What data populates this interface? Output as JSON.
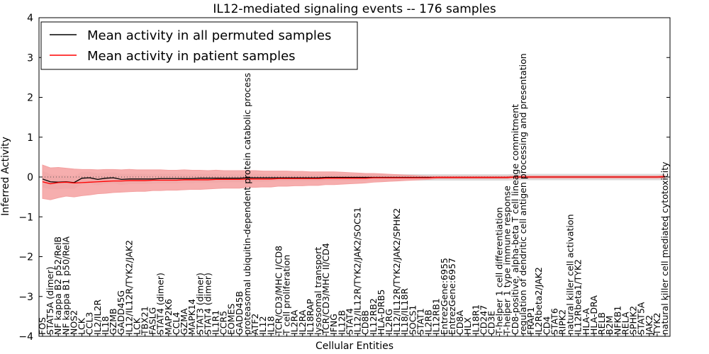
{
  "chart_data": {
    "type": "line",
    "title": "IL12-mediated signaling events -- 176 samples",
    "xlabel": "Cellular Entities",
    "ylabel": "Inferred Activity",
    "ylim": [
      -4,
      4
    ],
    "yticks": [
      -4,
      -3,
      -2,
      -1,
      0,
      1,
      2,
      3,
      4
    ],
    "ytick_labels": [
      "−4",
      "−3",
      "−2",
      "−1",
      "0",
      "1",
      "2",
      "3",
      "4"
    ],
    "legend": {
      "placement": "top-left",
      "entries": [
        {
          "label": "Mean activity in all permuted samples",
          "color": "#000000"
        },
        {
          "label": "Mean activity in patient samples",
          "color": "#ff0000"
        }
      ]
    },
    "colors": {
      "patient": "#ff0000",
      "patient_band": "#f4a0a0",
      "permuted": "#000000",
      "permuted_band": "#d9d9d9",
      "zero_line": "#555555"
    },
    "categories": [
      "FOS",
      "STAT5A (dimer)",
      "NF kappa B2 p52/RelB",
      "NF kappa B1 p50/RelA",
      "NOS2",
      "LCK",
      "CCL3",
      "IL2/IL2R",
      "IL18",
      "GZMB",
      "GADD45G",
      "IL12/IL12R/TYK2/JAK2",
      "LCK",
      "TBX21",
      "FASLG",
      "STAT4 (dimer)",
      "MAP2K6",
      "CCL4",
      "GZMA",
      "MAPK14",
      "STAT3 (dimer)",
      "STAT4 (dimer)",
      "IL1R1",
      "CCR5",
      "EOMES",
      "GADD45B",
      "proteasomal ubiquitin-dependent protein catabolic process",
      "ATF2",
      "IL12",
      "IL18",
      "TCR/CD3/MHC I/CD8",
      "T cell proliferation",
      "IL2RA",
      "IL2RA",
      "IL18RAP",
      "lysosomal transport",
      "TCR/CD3/MHC II/CD4",
      "IFNG",
      "IL12B",
      "STAT4",
      "IL12/IL12R/TYK2/JAK2/SOCS1",
      "CD8B",
      "IL12RB2",
      "HLA-DRB5",
      "IL2RG",
      "IL12/IL12R/TYK2/JAK2/SPHK2",
      "IL18/IL18R",
      "SOCS1",
      "STAT1",
      "IL2RB",
      "IL12RB1",
      "EntrezGene:6955",
      "EntrezGene:6957",
      "CD8A",
      "HLX",
      "IL18R1",
      "CD247",
      "CD3E",
      "T-helper 1 cell differentiation",
      "T-helper 1 type immune response",
      "CD8-positive, alpha-beta T cell lineage commitment",
      "regulation of dendritic cell antigen processing and presentation",
      "FRAP1",
      "IL2Rbeta2/JAK2",
      "CD4",
      "STAT6",
      "RIPK2",
      "natural killer cell activation",
      "IL12Rbeta1/TYK2",
      "HLA-A",
      "HLA-DRA",
      "RELB",
      "B2M",
      "NFKB1",
      "RELA",
      "SPHK2",
      "STAT5A",
      "JAK2",
      "TYK2",
      "natural killer cell mediated cytotoxicity"
    ],
    "series": [
      {
        "name": "Mean activity in all permuted samples",
        "values": [
          -0.05,
          -0.12,
          -0.13,
          -0.12,
          -0.14,
          -0.03,
          -0.02,
          -0.06,
          -0.03,
          -0.02,
          -0.06,
          -0.05,
          -0.05,
          -0.05,
          -0.05,
          -0.04,
          -0.04,
          -0.04,
          -0.04,
          -0.04,
          -0.03,
          -0.03,
          -0.03,
          -0.03,
          -0.03,
          -0.03,
          -0.02,
          -0.02,
          -0.02,
          -0.02,
          -0.02,
          -0.02,
          -0.02,
          -0.02,
          -0.02,
          -0.02,
          -0.01,
          -0.01,
          -0.01,
          -0.01,
          -0.01,
          -0.01,
          -0.01,
          -0.01,
          -0.01,
          -0.01,
          -0.01,
          -0.01,
          -0.01,
          -0.01,
          -0.01,
          -0.01,
          -0.01,
          -0.01,
          -0.01,
          -0.01,
          -0.01,
          -0.01,
          -0.01,
          -0.01,
          0,
          0,
          0,
          0,
          0,
          0,
          0,
          0,
          0,
          0,
          0,
          0,
          0,
          0,
          0,
          0,
          0,
          0,
          0,
          0
        ]
      },
      {
        "name": "Mean activity in patient samples",
        "values": [
          -0.12,
          -0.17,
          -0.14,
          -0.13,
          -0.15,
          -0.14,
          -0.13,
          -0.12,
          -0.11,
          -0.1,
          -0.1,
          -0.09,
          -0.09,
          -0.09,
          -0.08,
          -0.08,
          -0.08,
          -0.08,
          -0.07,
          -0.07,
          -0.07,
          -0.07,
          -0.06,
          -0.06,
          -0.06,
          -0.06,
          -0.05,
          -0.05,
          -0.05,
          -0.05,
          -0.04,
          -0.04,
          -0.04,
          -0.04,
          -0.04,
          -0.04,
          -0.03,
          -0.03,
          -0.03,
          -0.03,
          -0.03,
          -0.03,
          -0.02,
          -0.02,
          -0.02,
          -0.02,
          -0.02,
          -0.02,
          -0.02,
          -0.02,
          -0.01,
          -0.01,
          -0.01,
          -0.01,
          -0.01,
          -0.01,
          -0.01,
          -0.01,
          -0.01,
          -0.01,
          0,
          0,
          0,
          0,
          0,
          0,
          0,
          0,
          0,
          0,
          0,
          0,
          0,
          0,
          0,
          0,
          0,
          0,
          0,
          0.01
        ]
      }
    ],
    "patient_band_halfwidth": [
      0.42,
      0.4,
      0.38,
      0.35,
      0.35,
      0.33,
      0.32,
      0.3,
      0.3,
      0.29,
      0.28,
      0.28,
      0.27,
      0.27,
      0.26,
      0.26,
      0.25,
      0.25,
      0.25,
      0.24,
      0.24,
      0.23,
      0.23,
      0.22,
      0.22,
      0.22,
      0.21,
      0.21,
      0.2,
      0.2,
      0.19,
      0.19,
      0.18,
      0.18,
      0.17,
      0.17,
      0.16,
      0.16,
      0.15,
      0.14,
      0.13,
      0.12,
      0.11,
      0.1,
      0.09,
      0.08,
      0.07,
      0.06,
      0.05,
      0.04,
      0.03,
      0.03,
      0.03,
      0.03,
      0.03,
      0.03,
      0.03,
      0.03,
      0.03,
      0.03,
      0.03,
      0.03,
      0.03,
      0.03,
      0.03,
      0.03,
      0.03,
      0.03,
      0.03,
      0.03,
      0.03,
      0.03,
      0.03,
      0.03,
      0.03,
      0.03,
      0.03,
      0.03,
      0.03,
      0.03
    ],
    "permuted_band_halfwidth": [
      0.2,
      0.18,
      0.17,
      0.16,
      0.15,
      0.15,
      0.14,
      0.14,
      0.13,
      0.13,
      0.13,
      0.12,
      0.12,
      0.12,
      0.11,
      0.11,
      0.11,
      0.11,
      0.1,
      0.1,
      0.1,
      0.1,
      0.1,
      0.09,
      0.09,
      0.09,
      0.09,
      0.09,
      0.09,
      0.08,
      0.08,
      0.08,
      0.08,
      0.08,
      0.08,
      0.08,
      0.07,
      0.07,
      0.07,
      0.07,
      0.07,
      0.07,
      0.07,
      0.07,
      0.07,
      0.07,
      0.07,
      0.07,
      0.07,
      0.07,
      0.07,
      0.07,
      0.07,
      0.07,
      0.07,
      0.07,
      0.07,
      0.07,
      0.07,
      0.07,
      0.07,
      0.07,
      0.07,
      0.07,
      0.07,
      0.07,
      0.07,
      0.07,
      0.07,
      0.07,
      0.07,
      0.07,
      0.07,
      0.07,
      0.07,
      0.07,
      0.07,
      0.07,
      0.07,
      0.07
    ]
  }
}
